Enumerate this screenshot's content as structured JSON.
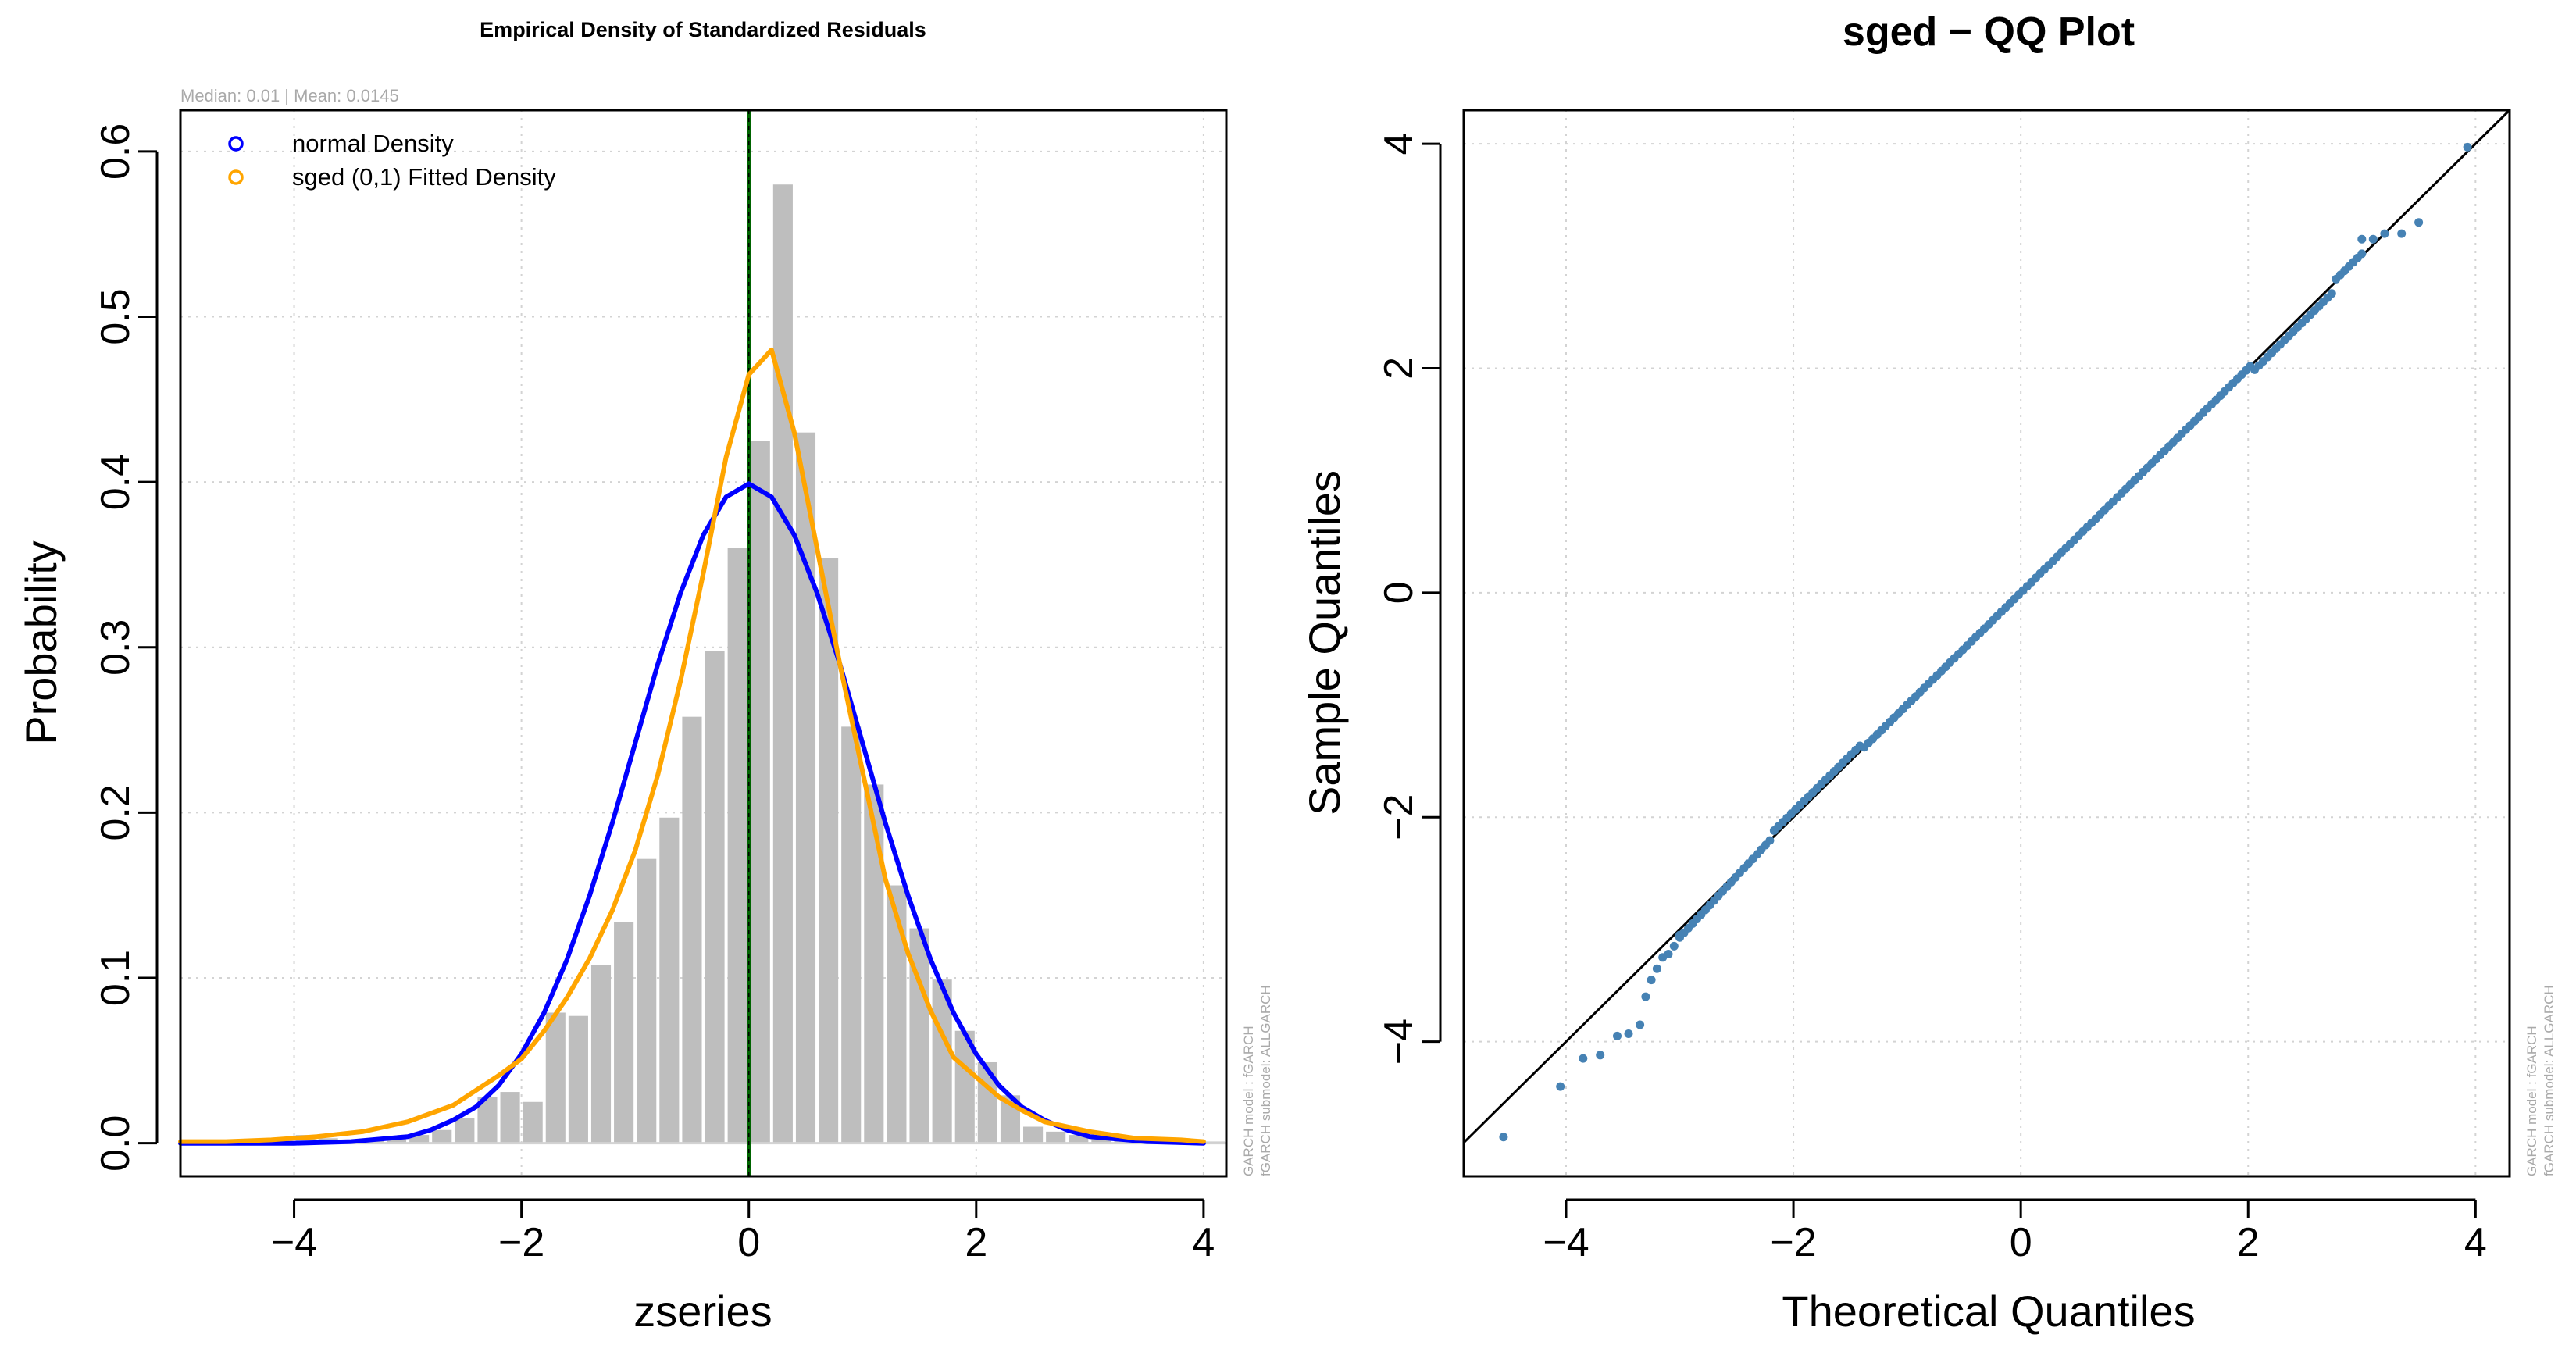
{
  "colors": {
    "bars": "#bebebe",
    "normal": "#0000ff",
    "sged": "#ffa500",
    "vline_dark": "#006400",
    "points": "#4682b4",
    "qqline": "#000000",
    "grid": "#d3d3d3",
    "annotation": "#a9a9a9"
  },
  "chart_data": [
    {
      "type": "histogram",
      "title": "Empirical Density of Standardized Residuals",
      "subtitle": "Median:  0.01 | Mean:  0.0145",
      "xlabel": "zseries",
      "ylabel": "Probability",
      "xlim": [
        -5,
        4.2
      ],
      "ylim": [
        -0.02,
        0.625
      ],
      "xticks": [
        -4,
        -2,
        0,
        2,
        4
      ],
      "xtick_labels": [
        "−4",
        "−2",
        "0",
        "2",
        "4"
      ],
      "yticks": [
        0,
        0.1,
        0.2,
        0.3,
        0.4,
        0.5,
        0.6
      ],
      "ytick_labels": [
        "0.0",
        "0.1",
        "0.2",
        "0.3",
        "0.4",
        "0.5",
        "0.6"
      ],
      "grid": true,
      "vertical_line_x": 0.0,
      "side_annotation": [
        "GARCH model :  fGARCH",
        "fGARCH submodel: ALLGARCH"
      ],
      "legend": {
        "position": "top-left",
        "entries": [
          {
            "label": "normal Density",
            "color": "#0000ff"
          },
          {
            "label": "sged (0,1) Fitted Density",
            "color": "#ffa500"
          }
        ]
      },
      "bins": {
        "start": -5.0,
        "width": 0.2,
        "heights": [
          0.001,
          0.001,
          0.001,
          0.001,
          0.001,
          0.005,
          0.003,
          0.001,
          0.002,
          0.003,
          0.005,
          0.008,
          0.015,
          0.028,
          0.031,
          0.025,
          0.079,
          0.077,
          0.108,
          0.134,
          0.172,
          0.197,
          0.258,
          0.298,
          0.36,
          0.425,
          0.58,
          0.43,
          0.354,
          0.252,
          0.217,
          0.156,
          0.13,
          0.099,
          0.068,
          0.049,
          0.029,
          0.01,
          0.007,
          0.005,
          0.004,
          0.002,
          0.001,
          0.001,
          0.001,
          0.001
        ]
      },
      "series": [
        {
          "name": "normal Density",
          "x": [
            -5.0,
            -4.5,
            -4.0,
            -3.5,
            -3.0,
            -2.8,
            -2.6,
            -2.4,
            -2.2,
            -2.0,
            -1.8,
            -1.6,
            -1.4,
            -1.2,
            -1.0,
            -0.8,
            -0.6,
            -0.4,
            -0.2,
            0.0,
            0.2,
            0.4,
            0.6,
            0.8,
            1.0,
            1.2,
            1.4,
            1.6,
            1.8,
            2.0,
            2.2,
            2.4,
            2.6,
            2.8,
            3.0,
            3.5,
            4.0
          ],
          "y": [
            0.0,
            0.0,
            0.0,
            0.001,
            0.004,
            0.008,
            0.014,
            0.022,
            0.035,
            0.054,
            0.079,
            0.111,
            0.15,
            0.194,
            0.242,
            0.29,
            0.333,
            0.368,
            0.391,
            0.399,
            0.391,
            0.368,
            0.333,
            0.29,
            0.242,
            0.194,
            0.15,
            0.111,
            0.079,
            0.054,
            0.035,
            0.022,
            0.014,
            0.008,
            0.004,
            0.001,
            0.0
          ]
        },
        {
          "name": "sged (0,1) Fitted Density",
          "x": [
            -5.0,
            -4.6,
            -4.2,
            -3.8,
            -3.4,
            -3.0,
            -2.6,
            -2.2,
            -2.0,
            -1.8,
            -1.6,
            -1.4,
            -1.2,
            -1.0,
            -0.8,
            -0.6,
            -0.4,
            -0.2,
            0.0,
            0.2,
            0.4,
            0.6,
            0.8,
            1.0,
            1.2,
            1.4,
            1.6,
            1.8,
            2.0,
            2.2,
            2.4,
            2.6,
            3.0,
            3.4,
            3.8,
            4.0
          ],
          "y": [
            0.001,
            0.001,
            0.002,
            0.004,
            0.007,
            0.013,
            0.023,
            0.041,
            0.051,
            0.068,
            0.088,
            0.112,
            0.141,
            0.177,
            0.223,
            0.28,
            0.345,
            0.415,
            0.465,
            0.48,
            0.43,
            0.36,
            0.29,
            0.225,
            0.16,
            0.115,
            0.08,
            0.052,
            0.04,
            0.028,
            0.02,
            0.013,
            0.007,
            0.003,
            0.002,
            0.001
          ]
        }
      ]
    },
    {
      "type": "scatter",
      "title": "sged − QQ Plot",
      "xlabel": "Theoretical Quantiles",
      "ylabel": "Sample Quantiles",
      "xlim": [
        -4.9,
        4.3
      ],
      "ylim": [
        -5.2,
        4.3
      ],
      "xticks": [
        -4,
        -2,
        0,
        2,
        4
      ],
      "xtick_labels": [
        "−4",
        "−2",
        "0",
        "2",
        "4"
      ],
      "yticks": [
        -4,
        -2,
        0,
        2,
        4
      ],
      "ytick_labels": [
        "−4",
        "−2",
        "0",
        "2",
        "4"
      ],
      "grid": true,
      "reference_line": {
        "slope": 1.0,
        "intercept": 0.0
      },
      "side_annotation": [
        "GARCH model :  fGARCH",
        "fGARCH submodel: ALLGARCH"
      ],
      "outliers_x": [
        -4.55,
        -4.05,
        -3.85,
        -3.7,
        -3.55,
        -3.45,
        -3.35,
        -3.3,
        -3.25,
        -3.2,
        -3.15,
        -3.1,
        -3.05,
        -3.0,
        3.0,
        3.1,
        3.2,
        3.35,
        3.5,
        3.93
      ],
      "outliers_y": [
        -4.85,
        -4.4,
        -4.15,
        -4.12,
        -3.95,
        -3.93,
        -3.85,
        -3.6,
        -3.45,
        -3.35,
        -3.25,
        -3.22,
        -3.15,
        -3.05,
        3.15,
        3.15,
        3.2,
        3.2,
        3.3,
        3.97
      ],
      "body_x_range": [
        -3.0,
        3.0
      ],
      "body_n": 160
    }
  ]
}
